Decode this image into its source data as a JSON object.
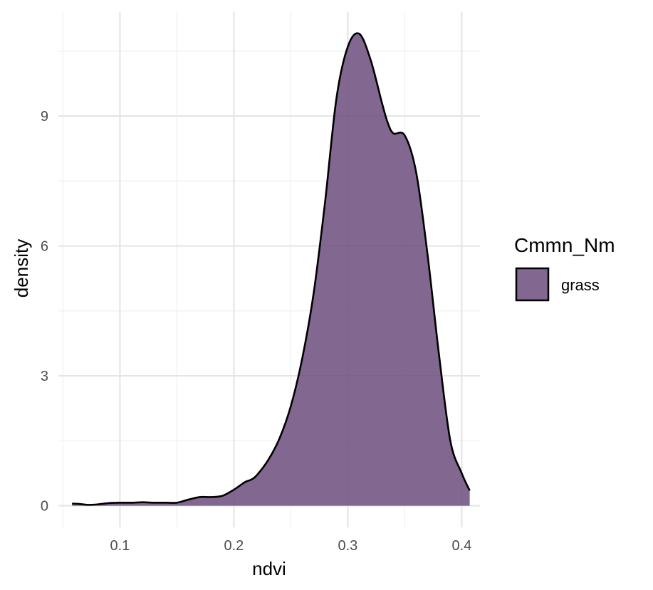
{
  "chart_data": {
    "type": "area",
    "xlabel": "ndvi",
    "ylabel": "density",
    "xlim": [
      0.046,
      0.416
    ],
    "ylim": [
      -0.5,
      11.4
    ],
    "x_ticks": [
      0.1,
      0.2,
      0.3,
      0.4
    ],
    "x_tick_labels": [
      "0.1",
      "0.2",
      "0.3",
      "0.4"
    ],
    "y_ticks": [
      0,
      3,
      6,
      9
    ],
    "y_tick_labels": [
      "0",
      "3",
      "6",
      "9"
    ],
    "grid": true,
    "legend": {
      "title": "Cmmn_Nm",
      "placement": "right",
      "entries": [
        {
          "label": "grass",
          "color": "#6c4d7e"
        }
      ]
    },
    "fill_color": "#6c4d7e",
    "fill_opacity": 0.85,
    "line_color": "#000000",
    "series": [
      {
        "name": "grass",
        "points": [
          [
            0.058,
            0.05
          ],
          [
            0.065,
            0.04
          ],
          [
            0.072,
            0.02
          ],
          [
            0.08,
            0.03
          ],
          [
            0.09,
            0.06
          ],
          [
            0.1,
            0.07
          ],
          [
            0.11,
            0.07
          ],
          [
            0.12,
            0.08
          ],
          [
            0.13,
            0.07
          ],
          [
            0.14,
            0.07
          ],
          [
            0.15,
            0.07
          ],
          [
            0.16,
            0.14
          ],
          [
            0.17,
            0.2
          ],
          [
            0.18,
            0.2
          ],
          [
            0.19,
            0.23
          ],
          [
            0.2,
            0.37
          ],
          [
            0.21,
            0.55
          ],
          [
            0.215,
            0.6
          ],
          [
            0.22,
            0.7
          ],
          [
            0.23,
            1.05
          ],
          [
            0.24,
            1.55
          ],
          [
            0.25,
            2.3
          ],
          [
            0.26,
            3.4
          ],
          [
            0.27,
            4.9
          ],
          [
            0.28,
            7.0
          ],
          [
            0.29,
            9.4
          ],
          [
            0.3,
            10.6
          ],
          [
            0.31,
            10.9
          ],
          [
            0.32,
            10.3
          ],
          [
            0.33,
            9.3
          ],
          [
            0.335,
            8.85
          ],
          [
            0.34,
            8.6
          ],
          [
            0.35,
            8.55
          ],
          [
            0.36,
            7.7
          ],
          [
            0.37,
            5.8
          ],
          [
            0.38,
            3.5
          ],
          [
            0.39,
            1.5
          ],
          [
            0.4,
            0.75
          ],
          [
            0.407,
            0.35
          ]
        ]
      }
    ]
  }
}
